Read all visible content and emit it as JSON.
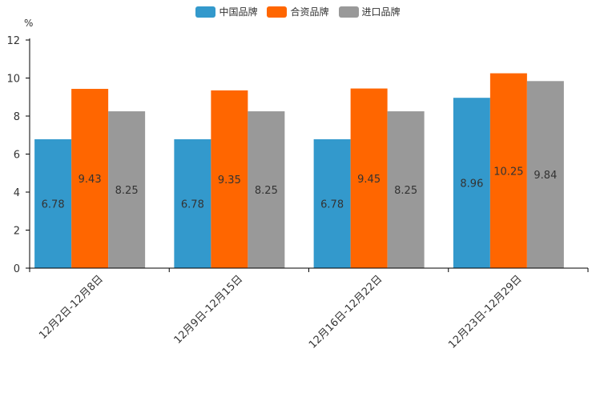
{
  "colors": {
    "china": "#3399cc",
    "joint": "#ff6600",
    "import": "#999999",
    "axis": "#000000",
    "text": "#333333"
  },
  "chart_data": {
    "type": "bar",
    "ylabel": "%",
    "ylim": [
      0,
      12
    ],
    "yticks": [
      "0",
      "2",
      "4",
      "6",
      "8",
      "10",
      "12"
    ],
    "categories": [
      "12月2日-12月8日",
      "12月9日-12月15日",
      "12月16日-12月22日",
      "12月23日-12月29日"
    ],
    "series": [
      {
        "name": "中国品牌",
        "color_key": "china",
        "values": [
          6.78,
          6.78,
          6.78,
          8.96
        ],
        "labels": [
          "6.78",
          "6.78",
          "6.78",
          "8.96"
        ]
      },
      {
        "name": "合资品牌",
        "color_key": "joint",
        "values": [
          9.43,
          9.35,
          9.45,
          10.25
        ],
        "labels": [
          "9.43",
          "9.35",
          "9.45",
          "10.25"
        ]
      },
      {
        "name": "进口品牌",
        "color_key": "import",
        "values": [
          8.25,
          8.25,
          8.25,
          9.84
        ],
        "labels": [
          "8.25",
          "8.25",
          "8.25",
          "9.84"
        ]
      }
    ],
    "legend_position": "top-center",
    "grid": false
  }
}
